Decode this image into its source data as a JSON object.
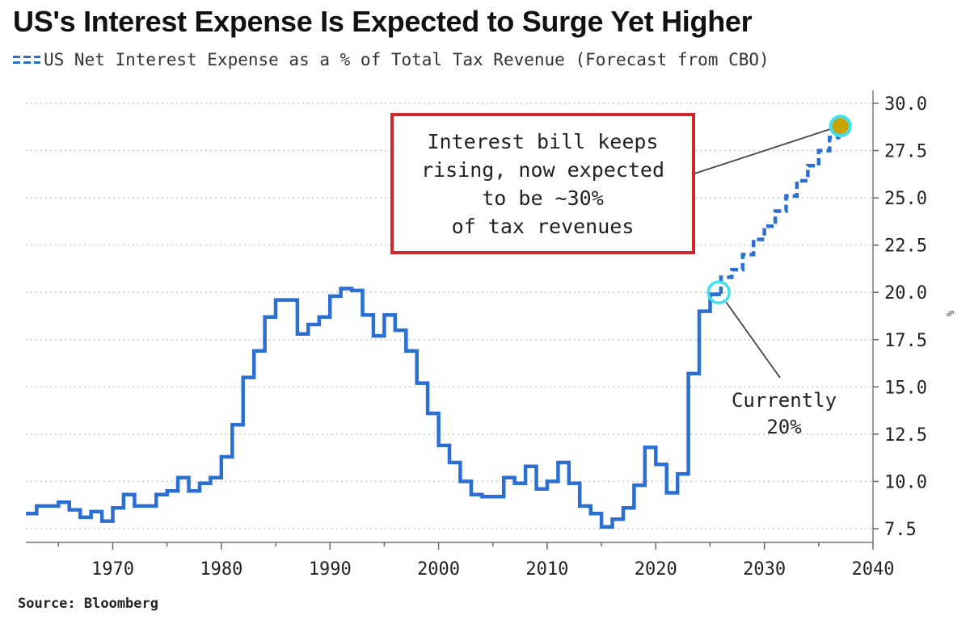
{
  "title": "US's Interest Expense Is Expected to Surge Yet Higher",
  "source": "Source: Bloomberg",
  "annotations": {
    "callout": "Interest bill keeps\nrising, now expected\nto be ~30%\nof tax revenues",
    "current": "Currently\n20%"
  },
  "colors": {
    "line": "#2a6fd1",
    "callout_border": "#d0272e",
    "marker_ring": "#3fe0f0",
    "marker_fill": "#c9a400"
  },
  "chart_data": {
    "type": "line",
    "title": "US's Interest Expense Is Expected to Surge Yet Higher",
    "xlabel": "",
    "ylabel": "",
    "y_unit": "%",
    "xlim": [
      1962,
      2040
    ],
    "ylim": [
      7.0,
      30.5
    ],
    "x_ticks": [
      "1970",
      "1980",
      "1990",
      "2000",
      "2010",
      "2020",
      "2030",
      "2040"
    ],
    "y_ticks": [
      "7.5",
      "10.0",
      "12.5",
      "15.0",
      "17.5",
      "20.0",
      "22.5",
      "25.0",
      "27.5",
      "30.0"
    ],
    "y_axis_position": "right",
    "grid": "horizontal dotted",
    "legend": "top-left",
    "step": true,
    "series": [
      {
        "name": "US Net Interest Expense as a % of Total Tax Revenue (Forecast from CBO)",
        "style": "solid",
        "x": [
          1962,
          1963,
          1964,
          1965,
          1966,
          1967,
          1968,
          1969,
          1970,
          1971,
          1972,
          1973,
          1974,
          1975,
          1976,
          1977,
          1978,
          1979,
          1980,
          1981,
          1982,
          1983,
          1984,
          1985,
          1986,
          1987,
          1988,
          1989,
          1990,
          1991,
          1992,
          1993,
          1994,
          1995,
          1996,
          1997,
          1998,
          1999,
          2000,
          2001,
          2002,
          2003,
          2004,
          2005,
          2006,
          2007,
          2008,
          2009,
          2010,
          2011,
          2012,
          2013,
          2014,
          2015,
          2016,
          2017,
          2018,
          2019,
          2020,
          2021,
          2022,
          2023,
          2024,
          2025
        ],
        "values": [
          8.3,
          8.7,
          8.7,
          8.9,
          8.5,
          8.1,
          8.4,
          7.9,
          8.6,
          9.3,
          8.7,
          8.7,
          9.3,
          9.5,
          10.2,
          9.5,
          9.9,
          10.2,
          11.3,
          13.0,
          15.5,
          16.9,
          18.7,
          19.6,
          19.6,
          17.8,
          18.3,
          18.7,
          19.8,
          20.2,
          20.1,
          18.8,
          17.7,
          18.8,
          18.0,
          16.9,
          15.2,
          13.6,
          11.9,
          11.0,
          10.0,
          9.3,
          9.2,
          9.2,
          10.2,
          9.9,
          10.8,
          9.6,
          10.0,
          11.0,
          9.9,
          8.7,
          8.3,
          7.6,
          8.0,
          8.6,
          9.8,
          11.8,
          10.9,
          9.4,
          10.4,
          15.7,
          19.0,
          19.9
        ]
      },
      {
        "name": "Forecast",
        "style": "dashed",
        "x": [
          2025,
          2026,
          2027,
          2028,
          2029,
          2030,
          2031,
          2032,
          2033,
          2034,
          2035,
          2036,
          2037
        ],
        "values": [
          19.9,
          20.8,
          21.2,
          22.0,
          22.8,
          23.5,
          24.3,
          25.1,
          25.9,
          26.7,
          27.5,
          28.2,
          28.8
        ]
      }
    ],
    "markers": [
      {
        "x": 2025.8,
        "y": 20.0,
        "label": "Currently 20%"
      },
      {
        "x": 2037.0,
        "y": 28.8,
        "label": "~30%"
      }
    ]
  }
}
